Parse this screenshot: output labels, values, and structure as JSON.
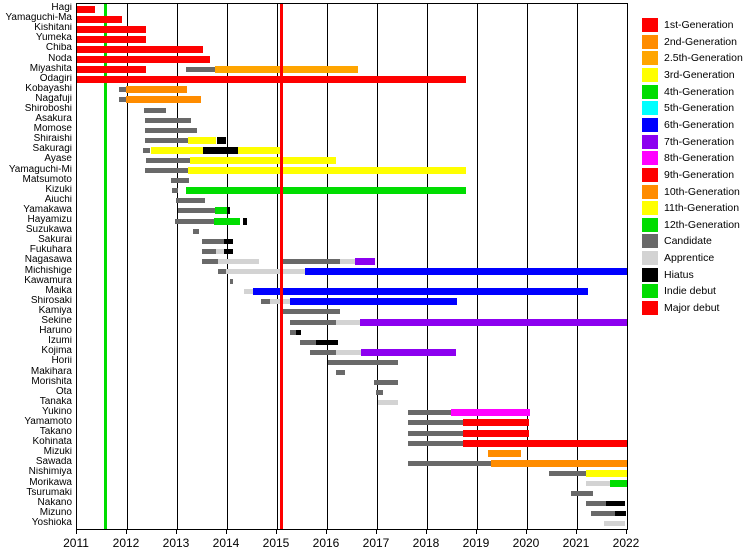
{
  "chart_data": {
    "type": "gantt",
    "title": "",
    "x_axis": {
      "range": [
        2011,
        2022
      ],
      "ticks": [
        2011,
        2012,
        2013,
        2014,
        2015,
        2016,
        2017,
        2018,
        2019,
        2020,
        2021,
        2022
      ],
      "grid": "vertical-yearly"
    },
    "status_colors": {
      "g1": "#fe0000",
      "g2": "#ff8c00",
      "g2_5": "#ffa500",
      "g3": "#ffff00",
      "g4": "#00dd00",
      "g5": "#00ffff",
      "g6": "#0000ff",
      "g7": "#8c00f0",
      "g8": "#ff00ff",
      "g9": "#fe0000",
      "g10": "#ff8c00",
      "g11": "#ffff00",
      "g12": "#00dd00",
      "candidate": "#696969",
      "apprentice": "#d3d3d3",
      "hiatus": "#000000",
      "indie": "#00dd00",
      "major": "#fe0000"
    },
    "legend": [
      {
        "label": "1st-Generation",
        "key": "g1"
      },
      {
        "label": "2nd-Generation",
        "key": "g2"
      },
      {
        "label": "2.5th-Generation",
        "key": "g2_5"
      },
      {
        "label": "3rd-Generation",
        "key": "g3"
      },
      {
        "label": "4th-Generation",
        "key": "g4"
      },
      {
        "label": "5th-Generation",
        "key": "g5"
      },
      {
        "label": "6th-Generation",
        "key": "g6"
      },
      {
        "label": "7th-Generation",
        "key": "g7"
      },
      {
        "label": "8th-Generation",
        "key": "g8"
      },
      {
        "label": "9th-Generation",
        "key": "g9"
      },
      {
        "label": "10th-Generation",
        "key": "g10"
      },
      {
        "label": "11th-Generation",
        "key": "g11"
      },
      {
        "label": "12th-Generation",
        "key": "g12"
      },
      {
        "label": "Candidate",
        "key": "candidate"
      },
      {
        "label": "Apprentice",
        "key": "apprentice"
      },
      {
        "label": "Hiatus",
        "key": "hiatus"
      },
      {
        "label": "Indie debut",
        "key": "indie"
      },
      {
        "label": "Major debut",
        "key": "major"
      }
    ],
    "events": [
      {
        "label": "Indie debut",
        "year": 2011.56,
        "key": "indie",
        "layer": "under"
      },
      {
        "label": "Major debut",
        "year": 2015.09,
        "key": "major",
        "layer": "over"
      }
    ],
    "members": [
      {
        "name": "Hagi",
        "segments": [
          [
            2011.0,
            2011.35,
            "g1"
          ]
        ]
      },
      {
        "name": "Yamaguchi-Ma",
        "segments": [
          [
            2011.0,
            2011.9,
            "g1"
          ]
        ]
      },
      {
        "name": "Kishitani",
        "segments": [
          [
            2011.0,
            2012.38,
            "g1"
          ]
        ]
      },
      {
        "name": "Yumeka",
        "segments": [
          [
            2011.0,
            2012.38,
            "g1"
          ]
        ]
      },
      {
        "name": "Chiba",
        "segments": [
          [
            2011.0,
            2013.51,
            "g1"
          ]
        ]
      },
      {
        "name": "Noda",
        "segments": [
          [
            2011.0,
            2013.65,
            "g1"
          ]
        ]
      },
      {
        "name": "Miyashita",
        "segments": [
          [
            2011.0,
            2012.37,
            "g1"
          ],
          [
            2013.18,
            2013.75,
            "candidate"
          ],
          [
            2013.75,
            2016.61,
            "g2_5"
          ]
        ]
      },
      {
        "name": "Ōdagiri",
        "segments": [
          [
            2011.0,
            2018.78,
            "g1"
          ]
        ]
      },
      {
        "name": "Kobayashi",
        "segments": [
          [
            2011.84,
            2011.98,
            "candidate"
          ],
          [
            2011.98,
            2013.2,
            "g2"
          ]
        ]
      },
      {
        "name": "Nagafuji",
        "segments": [
          [
            2011.84,
            2011.98,
            "candidate"
          ],
          [
            2011.98,
            2013.48,
            "g2"
          ]
        ]
      },
      {
        "name": "Shiroboshi",
        "segments": [
          [
            2012.34,
            2012.78,
            "candidate"
          ]
        ]
      },
      {
        "name": "Asakura",
        "segments": [
          [
            2012.36,
            2013.28,
            "candidate"
          ]
        ]
      },
      {
        "name": "Momose",
        "segments": [
          [
            2012.36,
            2013.4,
            "candidate"
          ]
        ]
      },
      {
        "name": "Shiraishi",
        "segments": [
          [
            2012.36,
            2013.21,
            "candidate"
          ],
          [
            2013.21,
            2013.78,
            "g3"
          ],
          [
            2013.8,
            2013.97,
            "hiatus"
          ]
        ]
      },
      {
        "name": "Sakuragi",
        "segments": [
          [
            2012.32,
            2012.46,
            "candidate"
          ],
          [
            2012.48,
            2013.52,
            "g3"
          ],
          [
            2013.52,
            2014.21,
            "hiatus"
          ],
          [
            2014.21,
            2015.05,
            "g3"
          ],
          [
            2015.05,
            2015.11,
            "hiatus"
          ]
        ]
      },
      {
        "name": "Ayase",
        "segments": [
          [
            2012.37,
            2013.25,
            "candidate"
          ],
          [
            2013.25,
            2016.18,
            "g3"
          ]
        ]
      },
      {
        "name": "Yamaguchi-Mi",
        "segments": [
          [
            2012.35,
            2013.21,
            "candidate"
          ],
          [
            2013.21,
            2018.78,
            "g3"
          ]
        ]
      },
      {
        "name": "Matsumoto",
        "segments": [
          [
            2012.88,
            2013.24,
            "candidate"
          ]
        ]
      },
      {
        "name": "Kizuki",
        "segments": [
          [
            2012.9,
            2013.02,
            "candidate"
          ],
          [
            2013.18,
            2018.78,
            "g4"
          ]
        ]
      },
      {
        "name": "Aiuchi",
        "segments": [
          [
            2012.98,
            2013.55,
            "candidate"
          ]
        ]
      },
      {
        "name": "Yamakawa",
        "segments": [
          [
            2013.02,
            2013.76,
            "candidate"
          ],
          [
            2013.76,
            2014.0,
            "g4"
          ],
          [
            2014.0,
            2014.06,
            "hiatus"
          ]
        ]
      },
      {
        "name": "Hayamizu",
        "segments": [
          [
            2012.95,
            2013.74,
            "candidate"
          ],
          [
            2013.74,
            2014.26,
            "g4"
          ],
          [
            2014.31,
            2014.4,
            "hiatus"
          ]
        ]
      },
      {
        "name": "Suzukawa",
        "segments": [
          [
            2013.32,
            2013.44,
            "candidate"
          ]
        ]
      },
      {
        "name": "Sakurai",
        "segments": [
          [
            2013.5,
            2013.93,
            "candidate"
          ],
          [
            2013.93,
            2014.11,
            "hiatus"
          ]
        ]
      },
      {
        "name": "Fukuhara",
        "segments": [
          [
            2013.5,
            2013.77,
            "candidate"
          ],
          [
            2013.77,
            2013.93,
            "apprentice"
          ],
          [
            2013.93,
            2014.11,
            "hiatus"
          ]
        ]
      },
      {
        "name": "Nagasawa",
        "segments": [
          [
            2013.5,
            2013.81,
            "candidate"
          ],
          [
            2013.81,
            2014.63,
            "apprentice"
          ],
          [
            2015.08,
            2016.25,
            "candidate"
          ],
          [
            2016.25,
            2016.55,
            "apprentice"
          ],
          [
            2016.55,
            2016.95,
            "g7"
          ]
        ]
      },
      {
        "name": "Michishige",
        "segments": [
          [
            2013.81,
            2013.98,
            "candidate"
          ],
          [
            2013.98,
            2015.56,
            "apprentice"
          ],
          [
            2015.56,
            2022.0,
            "g6"
          ]
        ]
      },
      {
        "name": "Kawamura",
        "segments": [
          [
            2014.05,
            2014.12,
            "candidate"
          ]
        ]
      },
      {
        "name": "Maika",
        "segments": [
          [
            2014.33,
            2014.52,
            "apprentice"
          ],
          [
            2014.52,
            2021.21,
            "g6"
          ]
        ]
      },
      {
        "name": "Shirosaki",
        "segments": [
          [
            2014.68,
            2014.85,
            "candidate"
          ],
          [
            2014.85,
            2015.25,
            "apprentice"
          ],
          [
            2015.25,
            2018.6,
            "g6"
          ]
        ]
      },
      {
        "name": "Kamiya",
        "segments": [
          [
            2015.11,
            2016.25,
            "candidate"
          ]
        ]
      },
      {
        "name": "Sekine",
        "segments": [
          [
            2015.25,
            2016.18,
            "candidate"
          ],
          [
            2016.18,
            2016.65,
            "apprentice"
          ],
          [
            2016.65,
            2022.0,
            "g7"
          ]
        ]
      },
      {
        "name": "Haruno",
        "segments": [
          [
            2015.25,
            2015.38,
            "candidate"
          ],
          [
            2015.38,
            2015.48,
            "hiatus"
          ]
        ]
      },
      {
        "name": "Izumi",
        "segments": [
          [
            2015.45,
            2015.78,
            "candidate"
          ],
          [
            2015.78,
            2016.22,
            "hiatus"
          ]
        ]
      },
      {
        "name": "Kojima",
        "segments": [
          [
            2015.66,
            2016.18,
            "candidate"
          ],
          [
            2016.18,
            2016.68,
            "apprentice"
          ],
          [
            2016.68,
            2018.58,
            "g7"
          ]
        ]
      },
      {
        "name": "Horii",
        "segments": [
          [
            2016.01,
            2017.41,
            "candidate"
          ]
        ]
      },
      {
        "name": "Makihara",
        "segments": [
          [
            2016.17,
            2016.35,
            "candidate"
          ]
        ]
      },
      {
        "name": "Morishita",
        "segments": [
          [
            2016.94,
            2017.41,
            "candidate"
          ]
        ]
      },
      {
        "name": "Ota",
        "segments": [
          [
            2016.98,
            2017.11,
            "candidate"
          ]
        ]
      },
      {
        "name": "Tanaka",
        "segments": [
          [
            2017.01,
            2017.41,
            "apprentice"
          ]
        ]
      },
      {
        "name": "Yukino",
        "segments": [
          [
            2017.62,
            2018.48,
            "candidate"
          ],
          [
            2018.48,
            2020.05,
            "g8"
          ]
        ]
      },
      {
        "name": "Yamamoto",
        "segments": [
          [
            2017.62,
            2018.71,
            "candidate"
          ],
          [
            2018.71,
            2020.03,
            "g9"
          ]
        ]
      },
      {
        "name": "Takano",
        "segments": [
          [
            2017.62,
            2018.71,
            "candidate"
          ],
          [
            2018.71,
            2020.03,
            "g9"
          ]
        ]
      },
      {
        "name": "Kohinata",
        "segments": [
          [
            2017.62,
            2018.71,
            "candidate"
          ],
          [
            2018.71,
            2022.0,
            "g9"
          ]
        ]
      },
      {
        "name": "Mizuki",
        "segments": [
          [
            2019.21,
            2019.88,
            "g10"
          ]
        ]
      },
      {
        "name": "Sawada",
        "segments": [
          [
            2017.62,
            2019.28,
            "candidate"
          ],
          [
            2019.28,
            2022.0,
            "g10"
          ]
        ]
      },
      {
        "name": "Nishimiya",
        "segments": [
          [
            2020.43,
            2021.18,
            "candidate"
          ],
          [
            2021.18,
            2022.0,
            "g11"
          ]
        ]
      },
      {
        "name": "Morikawa",
        "segments": [
          [
            2021.18,
            2021.65,
            "apprentice"
          ],
          [
            2021.65,
            2022.0,
            "g12"
          ]
        ]
      },
      {
        "name": "Tsurumaki",
        "segments": [
          [
            2020.88,
            2021.31,
            "candidate"
          ]
        ]
      },
      {
        "name": "Nakano",
        "segments": [
          [
            2021.17,
            2021.58,
            "candidate"
          ],
          [
            2021.58,
            2021.95,
            "hiatus"
          ]
        ]
      },
      {
        "name": "Mizuno",
        "segments": [
          [
            2021.28,
            2021.75,
            "candidate"
          ],
          [
            2021.75,
            2021.98,
            "hiatus"
          ]
        ]
      },
      {
        "name": "Yoshioka",
        "segments": [
          [
            2021.53,
            2021.96,
            "apprentice"
          ]
        ]
      }
    ]
  }
}
